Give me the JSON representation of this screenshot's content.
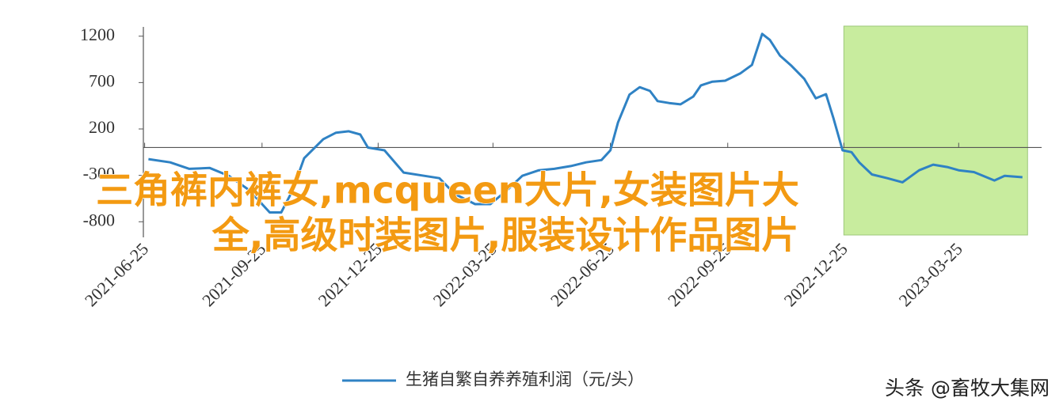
{
  "chart_data": {
    "type": "line",
    "x": [
      "2021-06-28",
      "2021-07-15",
      "2021-07-30",
      "2021-08-15",
      "2021-08-30",
      "2021-09-15",
      "2021-10-01",
      "2021-10-10",
      "2021-10-19",
      "2021-10-28",
      "2021-11-12",
      "2021-11-22",
      "2021-12-02",
      "2021-12-11",
      "2021-12-17",
      "2021-12-30",
      "2022-01-14",
      "2022-01-30",
      "2022-02-11",
      "2022-02-23",
      "2022-03-11",
      "2022-03-23",
      "2022-04-05",
      "2022-04-17",
      "2022-04-30",
      "2022-05-12",
      "2022-05-25",
      "2022-06-06",
      "2022-06-18",
      "2022-06-25",
      "2022-07-01",
      "2022-07-10",
      "2022-07-18",
      "2022-07-26",
      "2022-08-01",
      "2022-08-10",
      "2022-08-19",
      "2022-08-29",
      "2022-09-04",
      "2022-09-13",
      "2022-09-23",
      "2022-10-05",
      "2022-10-14",
      "2022-10-22",
      "2022-10-28",
      "2022-11-05",
      "2022-11-14",
      "2022-11-24",
      "2022-12-03",
      "2022-12-11",
      "2022-12-17",
      "2022-12-24",
      "2022-12-31",
      "2023-01-06",
      "2023-01-16",
      "2023-01-28",
      "2023-02-09",
      "2023-02-22",
      "2023-03-05",
      "2023-03-16",
      "2023-03-25",
      "2023-04-06",
      "2023-04-22",
      "2023-04-30",
      "2023-05-14"
    ],
    "series": [
      {
        "name": "生猪自繁自养养殖利润（元/头）",
        "color": "#2f82c4",
        "values": [
          -125,
          -160,
          -230,
          -220,
          -305,
          -460,
          -700,
          -700,
          -460,
          -115,
          90,
          160,
          175,
          140,
          0,
          -30,
          -270,
          -305,
          -330,
          -500,
          -610,
          -610,
          -460,
          -305,
          -245,
          -230,
          -200,
          -160,
          -135,
          -30,
          270,
          570,
          650,
          610,
          500,
          480,
          465,
          550,
          670,
          710,
          720,
          800,
          890,
          1225,
          1160,
          990,
          880,
          740,
          530,
          575,
          310,
          -30,
          -50,
          -160,
          -290,
          -330,
          -375,
          -245,
          -185,
          -210,
          -245,
          -265,
          -355,
          -305,
          -320
        ]
      }
    ],
    "xlim": [
      "2021-06-24",
      "2023-05-29"
    ],
    "xticks": [
      "2021-06-25",
      "2021-09-25",
      "2021-12-25",
      "2022-03-25",
      "2022-06-25",
      "2022-09-25",
      "2022-12-25",
      "2023-03-25"
    ],
    "ylim": [
      -900,
      1300
    ],
    "yticks": [
      1200,
      700,
      200,
      -300,
      -800
    ],
    "grid": false,
    "highlight_range": {
      "x": [
        "2022-12-25",
        "2023-05-18"
      ],
      "color": "#c8ec9e"
    }
  },
  "overlay_text": [
    "三角裤内裤女,mcqueen大片,女装图片大",
    "全,高级时装图片,服装设计作品图片"
  ],
  "watermark": "头条 @畜牧大集网"
}
